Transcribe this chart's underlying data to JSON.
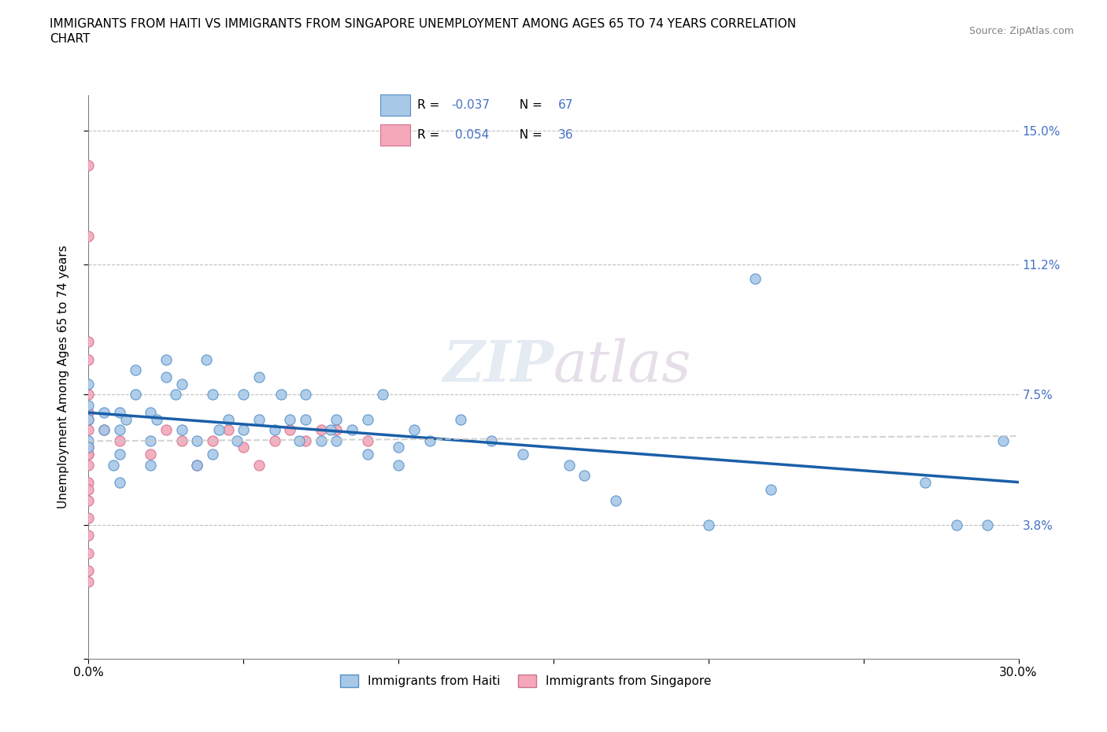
{
  "title_line1": "IMMIGRANTS FROM HAITI VS IMMIGRANTS FROM SINGAPORE UNEMPLOYMENT AMONG AGES 65 TO 74 YEARS CORRELATION",
  "title_line2": "CHART",
  "source": "Source: ZipAtlas.com",
  "ylabel": "Unemployment Among Ages 65 to 74 years",
  "xlim": [
    0.0,
    0.3
  ],
  "ylim": [
    0.0,
    0.16
  ],
  "haiti_R": -0.037,
  "haiti_N": 67,
  "singapore_R": 0.054,
  "singapore_N": 36,
  "haiti_color": "#a8c8e8",
  "singapore_color": "#f4a8ba",
  "haiti_edge_color": "#5590c8",
  "singapore_edge_color": "#d07090",
  "haiti_line_color": "#1a5fa8",
  "singapore_line_color": "#d0a0b0",
  "haiti_x": [
    0.0,
    0.0,
    0.0,
    0.0,
    0.0,
    0.005,
    0.005,
    0.008,
    0.01,
    0.01,
    0.01,
    0.01,
    0.012,
    0.015,
    0.015,
    0.02,
    0.02,
    0.02,
    0.022,
    0.025,
    0.025,
    0.028,
    0.03,
    0.03,
    0.035,
    0.035,
    0.038,
    0.04,
    0.04,
    0.042,
    0.045,
    0.048,
    0.05,
    0.05,
    0.055,
    0.055,
    0.06,
    0.062,
    0.065,
    0.068,
    0.07,
    0.07,
    0.075,
    0.078,
    0.08,
    0.08,
    0.085,
    0.09,
    0.09,
    0.095,
    0.1,
    0.1,
    0.105,
    0.11,
    0.12,
    0.13,
    0.14,
    0.155,
    0.16,
    0.17,
    0.2,
    0.215,
    0.22,
    0.27,
    0.28,
    0.29,
    0.295
  ],
  "haiti_y": [
    0.062,
    0.068,
    0.072,
    0.078,
    0.06,
    0.065,
    0.07,
    0.055,
    0.065,
    0.07,
    0.058,
    0.05,
    0.068,
    0.075,
    0.082,
    0.07,
    0.062,
    0.055,
    0.068,
    0.08,
    0.085,
    0.075,
    0.065,
    0.078,
    0.062,
    0.055,
    0.085,
    0.075,
    0.058,
    0.065,
    0.068,
    0.062,
    0.075,
    0.065,
    0.08,
    0.068,
    0.065,
    0.075,
    0.068,
    0.062,
    0.075,
    0.068,
    0.062,
    0.065,
    0.068,
    0.062,
    0.065,
    0.058,
    0.068,
    0.075,
    0.055,
    0.06,
    0.065,
    0.062,
    0.068,
    0.062,
    0.058,
    0.055,
    0.052,
    0.045,
    0.038,
    0.108,
    0.048,
    0.05,
    0.038,
    0.038,
    0.062
  ],
  "singapore_x": [
    0.0,
    0.0,
    0.0,
    0.0,
    0.0,
    0.0,
    0.0,
    0.0,
    0.0,
    0.0,
    0.0,
    0.0,
    0.0,
    0.0,
    0.0,
    0.0,
    0.0,
    0.0,
    0.0,
    0.0,
    0.005,
    0.01,
    0.02,
    0.025,
    0.03,
    0.035,
    0.04,
    0.045,
    0.05,
    0.055,
    0.06,
    0.065,
    0.07,
    0.075,
    0.08,
    0.09
  ],
  "singapore_y": [
    0.14,
    0.12,
    0.09,
    0.085,
    0.075,
    0.07,
    0.068,
    0.065,
    0.06,
    0.058,
    0.055,
    0.05,
    0.048,
    0.045,
    0.04,
    0.035,
    0.03,
    0.025,
    0.058,
    0.022,
    0.065,
    0.062,
    0.058,
    0.065,
    0.062,
    0.055,
    0.062,
    0.065,
    0.06,
    0.055,
    0.062,
    0.065,
    0.062,
    0.065,
    0.065,
    0.062
  ]
}
